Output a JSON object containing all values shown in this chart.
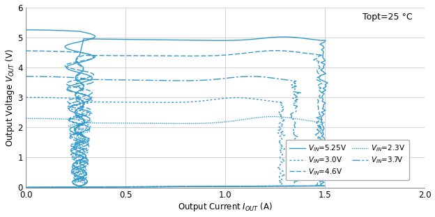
{
  "title": "Topt=25°C",
  "xlabel": "Output Current I$_{OUT}$ (A)",
  "ylabel": "Output Voltage V$_{OUT}$ (V)",
  "xlim": [
    0,
    2.0
  ],
  "ylim": [
    0,
    6
  ],
  "xticks": [
    0,
    0.5,
    1.0,
    1.5,
    2.0
  ],
  "yticks": [
    0,
    1,
    2,
    3,
    4,
    5,
    6
  ],
  "line_color": "#3399cc",
  "background": "#ffffff",
  "grid_color": "#cccccc",
  "figsize": [
    6.24,
    3.12
  ],
  "dpi": 100
}
